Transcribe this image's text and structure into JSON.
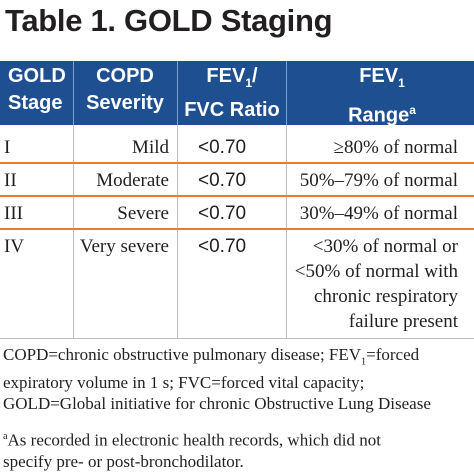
{
  "title": "Table 1. GOLD Staging",
  "header": {
    "gold_stage": [
      "GOLD",
      "Stage"
    ],
    "copd_severity": [
      "COPD",
      "Severity"
    ],
    "fev1_fvc": {
      "line1_pre": "FEV",
      "line1_sub": "1",
      "line1_post": "/",
      "line2": "FVC Ratio"
    },
    "fev1_range": {
      "line1_pre": "FEV",
      "line1_sub": "1",
      "line2": "Range",
      "line2_sup": "a"
    }
  },
  "rows": [
    {
      "stage": "I",
      "severity": "Mild",
      "ratio": "<0.70",
      "range": [
        "≥80% of normal"
      ]
    },
    {
      "stage": "II",
      "severity": "Moderate",
      "ratio": "<0.70",
      "range": [
        "50%–79% of normal"
      ]
    },
    {
      "stage": "III",
      "severity": "Severe",
      "ratio": "<0.70",
      "range": [
        "30%–49% of normal"
      ]
    },
    {
      "stage": "IV",
      "severity": "Very severe",
      "ratio": "<0.70",
      "range": [
        "<30% of normal or",
        "<50% of normal with",
        "chronic respiratory",
        "failure present"
      ]
    }
  ],
  "footnotes": {
    "abbrev_1": "COPD=chronic obstructive pulmonary disease; FEV",
    "abbrev_sub": "1",
    "abbrev_2": "=forced",
    "abbrev_line2": "expiratory volume in 1 s; FVC=forced vital capacity;",
    "abbrev_line3": "GOLD=Global initiative for chronic Obstructive Lung Disease",
    "note_mark": "a",
    "note_line1": "As recorded in electronic health records, which did not",
    "note_line2": "specify pre- or post-bronchodilator."
  }
}
